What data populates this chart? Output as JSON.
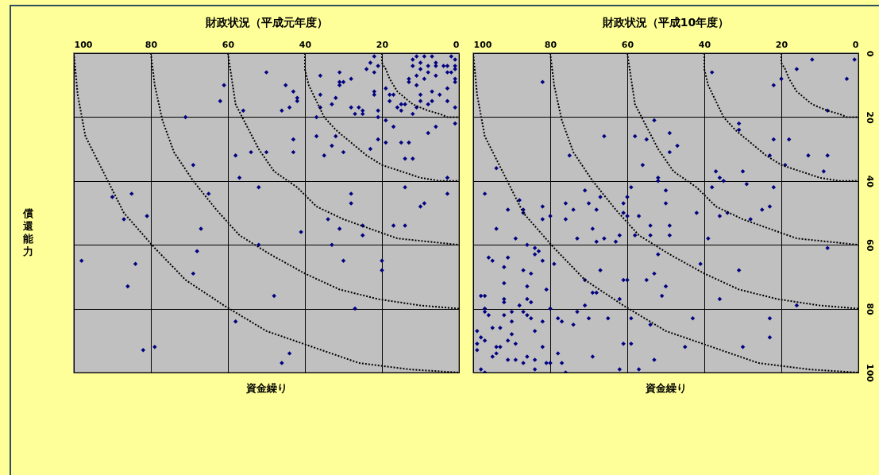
{
  "chart_data": [
    {
      "type": "scatter",
      "title": "財政状況（平成元年度）",
      "xlabel": "資金繰り",
      "ylabel": "償還能力",
      "xlim": [
        100,
        0
      ],
      "ylim": [
        100,
        0
      ],
      "xticks": [
        100,
        80,
        60,
        40,
        20,
        0
      ],
      "yticks": [
        0,
        20,
        40,
        60,
        80,
        100
      ],
      "tick_labels": "x",
      "grid": true,
      "series": [
        {
          "color": "#000080",
          "marker": "diamond",
          "x": [
            50,
            61,
            62,
            71,
            56,
            45,
            43,
            42,
            42,
            44,
            46,
            43,
            43,
            50,
            54,
            58,
            36,
            31,
            31,
            30,
            31,
            28,
            36,
            32,
            33,
            36,
            28,
            27,
            26,
            25,
            25,
            21,
            21,
            37,
            24,
            23,
            22,
            21,
            22,
            22,
            22,
            37,
            32,
            33,
            35,
            30,
            23,
            21,
            19,
            15,
            13,
            17,
            19,
            19,
            18,
            17,
            18,
            16,
            15,
            15,
            14,
            12,
            11,
            10,
            10,
            8,
            7,
            7,
            5,
            3,
            3,
            1,
            1,
            6,
            8,
            13,
            13,
            11,
            11,
            9,
            8,
            6,
            3,
            1,
            1,
            12,
            11,
            9,
            7,
            6,
            2,
            1,
            4,
            6,
            8,
            10,
            12,
            10,
            1,
            1,
            3,
            2,
            69,
            57,
            90,
            85,
            87,
            81,
            65,
            67,
            52,
            41,
            52,
            68,
            98,
            84,
            28,
            28,
            34,
            31,
            33,
            25,
            25,
            17,
            14,
            14,
            10,
            9,
            3,
            3,
            14,
            12,
            30,
            20,
            86,
            69,
            20,
            48,
            27,
            58,
            82,
            79,
            44,
            46
          ],
          "values": [
            6,
            10,
            15,
            20,
            18,
            10,
            12,
            14,
            15,
            17,
            18,
            27,
            31,
            31,
            31,
            32,
            7,
            6,
            9,
            9,
            10,
            8,
            13,
            14,
            16,
            17,
            17,
            19,
            17,
            18,
            19,
            18,
            20,
            20,
            5,
            3,
            1,
            4,
            6,
            12,
            13,
            26,
            26,
            29,
            32,
            31,
            30,
            27,
            28,
            28,
            28,
            23,
            21,
            11,
            13,
            13,
            15,
            17,
            16,
            18,
            16,
            19,
            17,
            13,
            15,
            16,
            15,
            12,
            13,
            11,
            15,
            17,
            22,
            23,
            25,
            8,
            9,
            10,
            7,
            8,
            6,
            7,
            6,
            8,
            9,
            2,
            1,
            1,
            1,
            3,
            1,
            2,
            4,
            4,
            4,
            5,
            4,
            3,
            4,
            5,
            4,
            6,
            35,
            39,
            45,
            44,
            52,
            51,
            44,
            55,
            42,
            56,
            60,
            62,
            65,
            66,
            44,
            47,
            52,
            55,
            60,
            54,
            57,
            54,
            54,
            42,
            48,
            47,
            44,
            39,
            33,
            33,
            65,
            65,
            73,
            69,
            68,
            76,
            80,
            84,
            93,
            92,
            94,
            97
          ]
        },
        {
          "type": "line",
          "color": "#000000",
          "line_style": "dotted",
          "x": [
            20,
            20,
            19,
            18,
            17,
            16,
            14,
            12,
            10,
            8,
            5,
            3,
            0
          ],
          "values": [
            0,
            3,
            5,
            8,
            10,
            12,
            14,
            16,
            17,
            18,
            19,
            20,
            20
          ]
        },
        {
          "type": "line",
          "color": "#000000",
          "line_style": "dotted",
          "x": [
            40,
            40,
            39,
            37,
            35,
            32,
            28,
            24,
            20,
            15,
            10,
            5,
            0
          ],
          "values": [
            0,
            5,
            10,
            15,
            20,
            24,
            28,
            32,
            35,
            37,
            39,
            40,
            40
          ]
        },
        {
          "type": "line",
          "color": "#000000",
          "line_style": "dotted",
          "x": [
            60,
            59,
            58,
            55,
            52,
            48,
            42,
            37,
            30,
            23,
            16,
            8,
            0
          ],
          "values": [
            0,
            8,
            16,
            23,
            30,
            37,
            42,
            48,
            52,
            55,
            58,
            59,
            60
          ]
        },
        {
          "type": "line",
          "color": "#000000",
          "line_style": "dotted",
          "x": [
            80,
            79,
            77,
            74,
            69,
            63,
            57,
            49,
            40,
            31,
            21,
            10,
            0
          ],
          "values": [
            0,
            10,
            21,
            31,
            40,
            49,
            57,
            63,
            69,
            74,
            77,
            79,
            80
          ]
        },
        {
          "type": "line",
          "color": "#000000",
          "line_style": "dotted",
          "x": [
            100,
            99,
            97,
            92,
            87,
            79,
            71,
            61,
            50,
            38,
            26,
            13,
            0
          ],
          "values": [
            0,
            13,
            26,
            38,
            50,
            61,
            71,
            79,
            87,
            92,
            97,
            99,
            100
          ]
        }
      ]
    },
    {
      "type": "scatter",
      "title": "財政状況（平成10年度）",
      "xlabel": "資金繰り",
      "xlim": [
        100,
        0
      ],
      "ylim": [
        100,
        0
      ],
      "xticks": [
        100,
        80,
        60,
        40,
        20,
        0
      ],
      "yticks": [
        0,
        20,
        40,
        60,
        80,
        100
      ],
      "grid": true,
      "series": [
        {
          "color": "#000080",
          "marker": "diamond",
          "x": [
            82,
            38,
            22,
            20,
            16,
            12,
            1,
            3,
            8,
            53,
            66,
            58,
            55,
            49,
            47,
            49,
            75,
            31,
            31,
            22,
            18,
            23,
            13,
            8,
            94,
            56,
            19,
            9,
            37,
            36,
            35,
            30,
            29,
            22,
            38,
            52,
            52,
            50,
            50,
            59,
            60,
            61,
            61,
            60,
            57,
            54,
            49,
            49,
            54,
            58,
            42,
            39,
            36,
            34,
            28,
            25,
            23,
            8,
            67,
            71,
            70,
            68,
            74,
            76,
            76,
            80,
            69,
            73,
            68,
            66,
            63,
            62,
            52,
            41,
            97,
            88,
            91,
            87,
            87,
            82,
            82,
            94,
            89,
            86,
            84,
            83,
            84,
            96,
            95,
            91,
            82,
            92,
            87,
            85,
            92,
            86,
            81,
            98,
            97,
            92,
            86,
            85,
            92,
            88,
            97,
            90,
            97,
            96,
            92,
            87,
            86,
            85,
            90,
            82,
            95,
            93,
            84,
            99,
            98,
            97,
            90,
            91,
            89,
            99,
            99,
            94,
            93,
            82,
            95,
            94,
            91,
            89,
            86,
            84,
            87,
            81,
            80,
            98,
            97,
            84,
            80,
            79,
            78,
            77,
            74,
            73,
            71,
            70,
            65,
            59,
            54,
            67,
            71,
            69,
            68,
            62,
            61,
            60,
            55,
            53,
            50,
            51,
            31,
            36,
            16,
            43,
            23,
            23,
            30,
            45,
            61,
            59,
            53,
            57,
            62,
            69,
            78,
            77,
            76
          ],
          "values": [
            9,
            6,
            10,
            8,
            5,
            2,
            2,
            8,
            18,
            21,
            26,
            26,
            27,
            25,
            29,
            31,
            32,
            22,
            24,
            27,
            27,
            32,
            32,
            32,
            36,
            35,
            35,
            37,
            37,
            39,
            40,
            37,
            41,
            42,
            42,
            39,
            40,
            43,
            47,
            42,
            45,
            47,
            50,
            51,
            51,
            54,
            54,
            57,
            57,
            57,
            50,
            58,
            51,
            50,
            52,
            49,
            48,
            61,
            45,
            43,
            47,
            49,
            49,
            47,
            52,
            51,
            55,
            58,
            59,
            58,
            59,
            57,
            63,
            66,
            44,
            46,
            49,
            49,
            50,
            48,
            52,
            55,
            58,
            60,
            61,
            62,
            63,
            64,
            65,
            64,
            65,
            67,
            68,
            69,
            72,
            73,
            74,
            76,
            76,
            77,
            77,
            78,
            78,
            79,
            80,
            81,
            81,
            82,
            82,
            81,
            82,
            83,
            84,
            84,
            86,
            86,
            87,
            87,
            89,
            90,
            88,
            90,
            91,
            91,
            93,
            92,
            92,
            92,
            95,
            94,
            96,
            96,
            95,
            96,
            97,
            97,
            97,
            99,
            100,
            99,
            80,
            66,
            83,
            84,
            85,
            81,
            79,
            83,
            83,
            83,
            85,
            68,
            71,
            75,
            75,
            77,
            71,
            71,
            71,
            69,
            73,
            76,
            68,
            77,
            79,
            83,
            83,
            89,
            92,
            92,
            91,
            91,
            96,
            99,
            99,
            95,
            94,
            97,
            100
          ]
        },
        {
          "type": "line",
          "color": "#000000",
          "line_style": "dotted",
          "x": [
            20,
            20,
            19,
            18,
            17,
            16,
            14,
            12,
            10,
            8,
            5,
            3,
            0
          ],
          "values": [
            0,
            3,
            5,
            8,
            10,
            12,
            14,
            16,
            17,
            18,
            19,
            20,
            20
          ]
        },
        {
          "type": "line",
          "color": "#000000",
          "line_style": "dotted",
          "x": [
            40,
            40,
            39,
            37,
            35,
            32,
            28,
            24,
            20,
            15,
            10,
            5,
            0
          ],
          "values": [
            0,
            5,
            10,
            15,
            20,
            24,
            28,
            32,
            35,
            37,
            39,
            40,
            40
          ]
        },
        {
          "type": "line",
          "color": "#000000",
          "line_style": "dotted",
          "x": [
            60,
            59,
            58,
            55,
            52,
            48,
            42,
            37,
            30,
            23,
            16,
            8,
            0
          ],
          "values": [
            0,
            8,
            16,
            23,
            30,
            37,
            42,
            48,
            52,
            55,
            58,
            59,
            60
          ]
        },
        {
          "type": "line",
          "color": "#000000",
          "line_style": "dotted",
          "x": [
            80,
            79,
            77,
            74,
            69,
            63,
            57,
            49,
            40,
            31,
            21,
            10,
            0
          ],
          "values": [
            0,
            10,
            21,
            31,
            40,
            49,
            57,
            63,
            69,
            74,
            77,
            79,
            80
          ]
        },
        {
          "type": "line",
          "color": "#000000",
          "line_style": "dotted",
          "x": [
            100,
            99,
            97,
            92,
            87,
            79,
            71,
            61,
            50,
            38,
            26,
            13,
            0
          ],
          "values": [
            0,
            13,
            26,
            38,
            50,
            61,
            71,
            79,
            87,
            92,
            97,
            99,
            100
          ]
        }
      ]
    }
  ]
}
